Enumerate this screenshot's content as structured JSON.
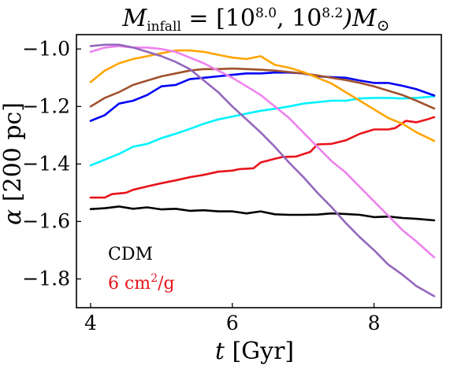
{
  "chart_data": {
    "type": "line",
    "title": {
      "pre": "M",
      "sub": "infall",
      "mid1": " = [10",
      "sup1": "8.0",
      "mid2": ", 10",
      "sup2": "8.2",
      "post": ")M",
      "sun": "⊙"
    },
    "xlabel": {
      "var": "t",
      "unit": " [Gyr]"
    },
    "ylabel": {
      "var": "α",
      "unit": " [200 pc]"
    },
    "xlim": [
      3.8,
      8.95
    ],
    "ylim": [
      -1.9,
      -0.95
    ],
    "xticks": [
      4,
      6,
      8
    ],
    "yticks": [
      -1.0,
      -1.2,
      -1.4,
      -1.6,
      -1.8
    ],
    "xtick_labels": [
      "4",
      "6",
      "8"
    ],
    "ytick_labels": [
      "−1.0",
      "−1.2",
      "−1.4",
      "−1.6",
      "−1.8"
    ],
    "grid": false,
    "annotations": [
      {
        "text": "CDM",
        "color": "#000000"
      },
      {
        "text_main": "6 cm",
        "text_sup": "2",
        "text_tail": "/g",
        "color": "#e8141b"
      }
    ],
    "series": [
      {
        "color": "#000000",
        "x": [
          4.0,
          4.2,
          4.4,
          4.6,
          4.8,
          5.0,
          5.2,
          5.4,
          5.6,
          5.8,
          6.0,
          6.2,
          6.4,
          6.6,
          6.8,
          7.0,
          7.2,
          7.4,
          7.6,
          7.8,
          8.0,
          8.2,
          8.4,
          8.6,
          8.85
        ],
        "y": [
          -1.557,
          -1.554,
          -1.548,
          -1.556,
          -1.551,
          -1.558,
          -1.556,
          -1.563,
          -1.561,
          -1.565,
          -1.565,
          -1.572,
          -1.565,
          -1.575,
          -1.577,
          -1.577,
          -1.576,
          -1.572,
          -1.574,
          -1.577,
          -1.585,
          -1.583,
          -1.588,
          -1.591,
          -1.596
        ]
      },
      {
        "color": "#e8141b",
        "x": [
          4.0,
          4.2,
          4.3,
          4.5,
          4.6,
          4.8,
          5.0,
          5.2,
          5.4,
          5.6,
          5.8,
          6.0,
          6.1,
          6.3,
          6.4,
          6.6,
          6.7,
          6.9,
          7.1,
          7.2,
          7.4,
          7.6,
          7.8,
          8.0,
          8.2,
          8.3,
          8.45,
          8.6,
          8.75,
          8.85
        ],
        "y": [
          -1.517,
          -1.517,
          -1.505,
          -1.5,
          -1.49,
          -1.478,
          -1.467,
          -1.457,
          -1.446,
          -1.438,
          -1.427,
          -1.423,
          -1.418,
          -1.415,
          -1.395,
          -1.382,
          -1.376,
          -1.374,
          -1.358,
          -1.332,
          -1.33,
          -1.318,
          -1.295,
          -1.28,
          -1.28,
          -1.275,
          -1.25,
          -1.255,
          -1.245,
          -1.237
        ]
      },
      {
        "color": "#00f2ff",
        "x": [
          4.0,
          4.2,
          4.4,
          4.6,
          4.8,
          5.0,
          5.2,
          5.4,
          5.6,
          5.8,
          6.0,
          6.2,
          6.4,
          6.6,
          6.8,
          7.0,
          7.2,
          7.4,
          7.6,
          7.8,
          8.0,
          8.2,
          8.4,
          8.6,
          8.85
        ],
        "y": [
          -1.405,
          -1.385,
          -1.365,
          -1.34,
          -1.33,
          -1.31,
          -1.295,
          -1.278,
          -1.26,
          -1.245,
          -1.235,
          -1.225,
          -1.215,
          -1.208,
          -1.2,
          -1.19,
          -1.185,
          -1.18,
          -1.18,
          -1.172,
          -1.17,
          -1.17,
          -1.172,
          -1.17,
          -1.165
        ]
      },
      {
        "color": "#0000f5",
        "x": [
          4.0,
          4.2,
          4.4,
          4.6,
          4.8,
          5.0,
          5.2,
          5.4,
          5.6,
          5.8,
          6.0,
          6.2,
          6.4,
          6.6,
          6.8,
          7.0,
          7.2,
          7.4,
          7.6,
          7.8,
          8.0,
          8.2,
          8.4,
          8.6,
          8.85
        ],
        "y": [
          -1.25,
          -1.23,
          -1.19,
          -1.18,
          -1.16,
          -1.13,
          -1.125,
          -1.105,
          -1.1,
          -1.095,
          -1.09,
          -1.085,
          -1.085,
          -1.082,
          -1.082,
          -1.085,
          -1.095,
          -1.098,
          -1.1,
          -1.11,
          -1.118,
          -1.118,
          -1.128,
          -1.14,
          -1.162
        ]
      },
      {
        "color": "#a0522d",
        "x": [
          4.0,
          4.2,
          4.4,
          4.6,
          4.8,
          5.0,
          5.2,
          5.4,
          5.6,
          5.8,
          6.0,
          6.2,
          6.4,
          6.6,
          6.8,
          7.0,
          7.2,
          7.4,
          7.6,
          7.8,
          8.0,
          8.2,
          8.4,
          8.6,
          8.85
        ],
        "y": [
          -1.2,
          -1.17,
          -1.15,
          -1.125,
          -1.11,
          -1.095,
          -1.085,
          -1.075,
          -1.07,
          -1.07,
          -1.068,
          -1.07,
          -1.072,
          -1.075,
          -1.08,
          -1.085,
          -1.092,
          -1.1,
          -1.108,
          -1.118,
          -1.13,
          -1.145,
          -1.16,
          -1.18,
          -1.207
        ]
      },
      {
        "color": "#ffa500",
        "x": [
          4.0,
          4.2,
          4.4,
          4.6,
          4.8,
          5.0,
          5.2,
          5.4,
          5.6,
          5.8,
          6.0,
          6.2,
          6.4,
          6.6,
          6.8,
          7.0,
          7.2,
          7.4,
          7.6,
          7.8,
          8.0,
          8.2,
          8.4,
          8.6,
          8.85
        ],
        "y": [
          -1.115,
          -1.075,
          -1.05,
          -1.035,
          -1.025,
          -1.015,
          -1.005,
          -1.005,
          -1.01,
          -1.02,
          -1.03,
          -1.035,
          -1.025,
          -1.055,
          -1.065,
          -1.08,
          -1.1,
          -1.12,
          -1.15,
          -1.18,
          -1.21,
          -1.24,
          -1.26,
          -1.29,
          -1.32
        ]
      },
      {
        "color": "#ee82ee",
        "x": [
          4.0,
          4.2,
          4.4,
          4.6,
          4.8,
          5.0,
          5.2,
          5.4,
          5.6,
          5.8,
          6.0,
          6.2,
          6.4,
          6.6,
          6.8,
          7.0,
          7.2,
          7.4,
          7.6,
          7.8,
          8.0,
          8.2,
          8.4,
          8.6,
          8.85
        ],
        "y": [
          -1.01,
          -0.995,
          -0.99,
          -0.995,
          -0.995,
          -1.0,
          -1.01,
          -1.03,
          -1.05,
          -1.075,
          -1.1,
          -1.13,
          -1.16,
          -1.2,
          -1.24,
          -1.29,
          -1.34,
          -1.39,
          -1.43,
          -1.48,
          -1.53,
          -1.58,
          -1.63,
          -1.67,
          -1.725
        ]
      },
      {
        "color": "#9467bd",
        "x": [
          4.0,
          4.2,
          4.4,
          4.6,
          4.8,
          5.0,
          5.2,
          5.4,
          5.6,
          5.8,
          6.0,
          6.2,
          6.4,
          6.6,
          6.8,
          7.0,
          7.2,
          7.4,
          7.6,
          7.8,
          8.0,
          8.2,
          8.4,
          8.6,
          8.85
        ],
        "y": [
          -0.99,
          -0.985,
          -0.985,
          -0.995,
          -1.01,
          -1.025,
          -1.045,
          -1.07,
          -1.11,
          -1.15,
          -1.2,
          -1.245,
          -1.29,
          -1.34,
          -1.395,
          -1.445,
          -1.5,
          -1.55,
          -1.605,
          -1.655,
          -1.7,
          -1.75,
          -1.785,
          -1.825,
          -1.86
        ]
      }
    ]
  }
}
